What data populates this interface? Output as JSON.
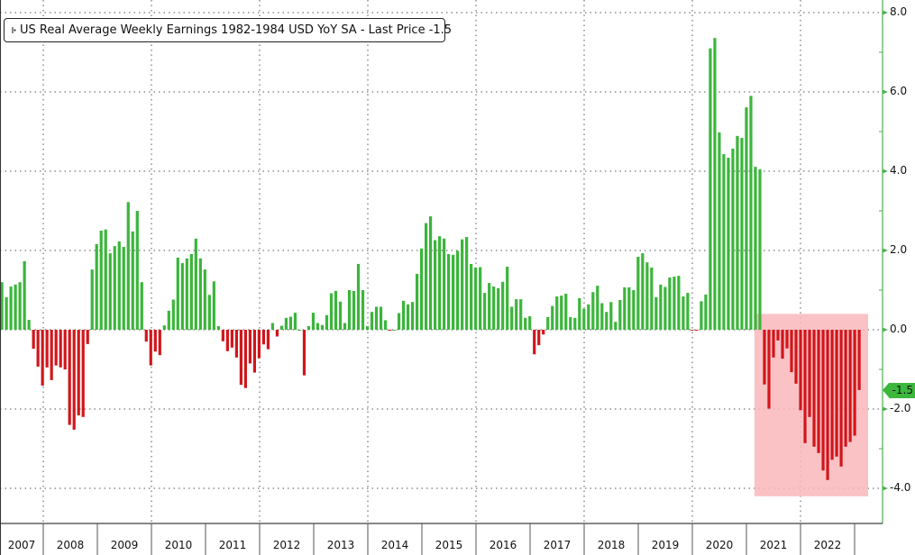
{
  "legend": {
    "text": "US Real Average Weekly Earnings 1982-1984 USD YoY SA - Last Price -1.5"
  },
  "last_price_tag": "-1.5",
  "colors": {
    "positive": "#3bb53b",
    "negative": "#d0161b",
    "highlight": "#f9b7bb",
    "axis": "#4caf50"
  },
  "chart_data": {
    "type": "bar",
    "title": "US Real Average Weekly Earnings 1982-1984 USD YoY SA - Last Price -1.5",
    "frequency": "monthly",
    "xlabel": "",
    "ylabel": "",
    "ylim": [
      -4.8,
      8.3
    ],
    "y_ticks": [
      "8.0",
      "6.0",
      "4.0",
      "2.0",
      "0.0",
      "-2.0",
      "-4.0"
    ],
    "y_tick_values": [
      8,
      6,
      4,
      2,
      0,
      -2,
      -4
    ],
    "x_tick_labels": [
      "2007",
      "2008",
      "2009",
      "2010",
      "2011",
      "2012",
      "2013",
      "2014",
      "2015",
      "2016",
      "2017",
      "2018",
      "2019",
      "2020",
      "2021",
      "2022"
    ],
    "grid": true,
    "legend_position": "top-left",
    "last_value": -1.5,
    "highlight_region": {
      "from_index": 169,
      "to_index": 190,
      "y_from": -4.2,
      "y_to": 0.4
    },
    "values": [
      1.2,
      0.82,
      1.09,
      1.14,
      1.2,
      1.73,
      0.25,
      -0.48,
      -0.93,
      -1.41,
      -0.95,
      -1.27,
      -0.9,
      -0.95,
      -1.0,
      -2.4,
      -2.52,
      -2.16,
      -2.2,
      -0.36,
      1.52,
      2.16,
      2.5,
      2.53,
      1.93,
      2.11,
      2.23,
      2.09,
      3.22,
      2.48,
      3.0,
      1.2,
      -0.3,
      -0.9,
      -0.55,
      -0.64,
      0.11,
      0.48,
      0.76,
      1.82,
      1.68,
      1.8,
      1.91,
      2.3,
      1.8,
      1.52,
      0.88,
      1.22,
      0.09,
      -0.29,
      -0.54,
      -0.45,
      -0.7,
      -1.39,
      -1.47,
      -0.85,
      -1.08,
      -0.72,
      -0.37,
      -0.49,
      0.17,
      -0.17,
      0.1,
      0.3,
      0.33,
      0.43,
      0.0,
      -1.15,
      0.09,
      0.43,
      0.17,
      0.12,
      0.37,
      0.92,
      0.98,
      0.71,
      0.17,
      1.0,
      0.98,
      1.66,
      1.0,
      0.09,
      0.45,
      0.58,
      0.58,
      0.24,
      -0.02,
      0.0,
      0.42,
      0.73,
      0.64,
      0.7,
      1.41,
      2.05,
      2.69,
      2.86,
      2.26,
      2.36,
      2.3,
      1.91,
      1.89,
      1.99,
      2.28,
      2.34,
      1.66,
      1.57,
      1.58,
      0.93,
      1.18,
      1.09,
      1.05,
      1.21,
      1.59,
      0.58,
      0.77,
      0.77,
      0.3,
      0.34,
      -0.62,
      -0.39,
      -0.12,
      0.32,
      0.6,
      0.84,
      0.86,
      0.91,
      0.32,
      0.3,
      0.8,
      0.53,
      0.64,
      0.95,
      1.11,
      0.67,
      0.45,
      0.7,
      0.2,
      0.75,
      1.07,
      1.07,
      1.0,
      1.84,
      1.93,
      1.7,
      1.57,
      0.82,
      1.14,
      1.08,
      1.32,
      1.34,
      1.36,
      0.84,
      0.93,
      -0.01,
      -0.02,
      0.72,
      0.89,
      7.1,
      7.36,
      4.98,
      4.43,
      4.34,
      4.57,
      4.89,
      4.84,
      5.61,
      5.9,
      4.11,
      4.05,
      -1.38,
      -1.99,
      -0.7,
      -0.27,
      -0.73,
      -0.47,
      -1.07,
      -1.36,
      -2.03,
      -2.86,
      -2.2,
      -2.95,
      -3.11,
      -3.55,
      -3.79,
      -3.28,
      -3.2,
      -3.45,
      -2.95,
      -2.83,
      -2.67,
      -1.52
    ]
  }
}
